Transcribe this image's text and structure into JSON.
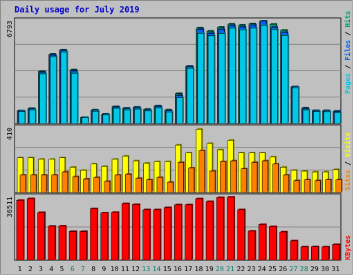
{
  "title": "Daily usage for July 2019",
  "colors": {
    "pages": "#00c8e6",
    "files": "#0064ff",
    "hits": "#00a070",
    "visits": "#ffff00",
    "sites": "#ff8000",
    "kbytes": "#ff0000",
    "weekday_label": "#000000",
    "weekend_label": "#00806a"
  },
  "chart_data": [
    {
      "type": "bar",
      "name": "hits-files-pages",
      "categories": [
        "1",
        "2",
        "3",
        "4",
        "5",
        "6",
        "7",
        "8",
        "9",
        "10",
        "11",
        "12",
        "13",
        "14",
        "15",
        "16",
        "17",
        "18",
        "19",
        "20",
        "21",
        "22",
        "23",
        "24",
        "25",
        "26",
        "27",
        "28",
        "29",
        "30",
        "31"
      ],
      "weekend_days": [
        "6",
        "7",
        "13",
        "14",
        "20",
        "21",
        "27",
        "28"
      ],
      "max_label": "6793",
      "ymax": 6793,
      "legend": [
        "Pages",
        "Files",
        "Hits"
      ],
      "series": [
        {
          "name": "Hits",
          "values": [
            850,
            1000,
            3450,
            4580,
            4860,
            3550,
            400,
            900,
            620,
            1120,
            1020,
            1080,
            940,
            1170,
            900,
            1980,
            3790,
            6320,
            6100,
            6360,
            6570,
            6500,
            6590,
            6760,
            6560,
            6160,
            2430,
            1030,
            860,
            860,
            820
          ]
        },
        {
          "name": "Files",
          "values": [
            830,
            960,
            3380,
            4510,
            4820,
            3470,
            400,
            860,
            600,
            1090,
            970,
            1040,
            880,
            1130,
            830,
            1850,
            3760,
            6220,
            5960,
            6210,
            6470,
            6370,
            6490,
            6760,
            6360,
            6010,
            2410,
            960,
            850,
            820,
            780
          ]
        },
        {
          "name": "Pages",
          "values": [
            790,
            890,
            3280,
            4400,
            4720,
            3320,
            380,
            810,
            560,
            1000,
            900,
            950,
            830,
            1020,
            760,
            1700,
            3640,
            5960,
            5800,
            5950,
            6300,
            6190,
            6300,
            6480,
            6210,
            5820,
            2360,
            880,
            790,
            780,
            700
          ]
        }
      ]
    },
    {
      "type": "bar",
      "name": "visits-sites",
      "categories": [
        "1",
        "2",
        "3",
        "4",
        "5",
        "6",
        "7",
        "8",
        "9",
        "10",
        "11",
        "12",
        "13",
        "14",
        "15",
        "16",
        "17",
        "18",
        "19",
        "20",
        "21",
        "22",
        "23",
        "24",
        "25",
        "26",
        "27",
        "28",
        "29",
        "30",
        "31"
      ],
      "max_label": "410",
      "ymax": 410,
      "legend": [
        "Visits",
        "Sites"
      ],
      "series": [
        {
          "name": "Visits",
          "values": [
            220,
            220,
            210,
            210,
            220,
            160,
            140,
            180,
            165,
            210,
            230,
            200,
            185,
            195,
            195,
            300,
            250,
            400,
            310,
            270,
            330,
            250,
            250,
            250,
            225,
            160,
            140,
            135,
            130,
            130,
            145
          ]
        },
        {
          "name": "Sites",
          "values": [
            110,
            110,
            110,
            110,
            130,
            100,
            85,
            95,
            70,
            110,
            115,
            90,
            80,
            95,
            65,
            190,
            155,
            265,
            135,
            195,
            200,
            150,
            190,
            200,
            180,
            110,
            75,
            80,
            75,
            80,
            80
          ]
        }
      ]
    },
    {
      "type": "bar",
      "name": "kbytes",
      "categories": [
        "1",
        "2",
        "3",
        "4",
        "5",
        "6",
        "7",
        "8",
        "9",
        "10",
        "11",
        "12",
        "13",
        "14",
        "15",
        "16",
        "17",
        "18",
        "19",
        "20",
        "21",
        "22",
        "23",
        "24",
        "25",
        "26",
        "27",
        "28",
        "29",
        "30",
        "31"
      ],
      "max_label": "36511",
      "ymax": 36511,
      "legend": [
        "KBytes"
      ],
      "series": [
        {
          "name": "KBytes",
          "values": [
            34400,
            35350,
            27400,
            19500,
            19600,
            16500,
            16500,
            29600,
            27150,
            27450,
            32500,
            32000,
            29000,
            29000,
            30200,
            31800,
            31800,
            35300,
            33700,
            36000,
            36200,
            29000,
            16700,
            20500,
            19300,
            16200,
            11100,
            7600,
            7700,
            7600,
            9000
          ]
        }
      ]
    }
  ]
}
